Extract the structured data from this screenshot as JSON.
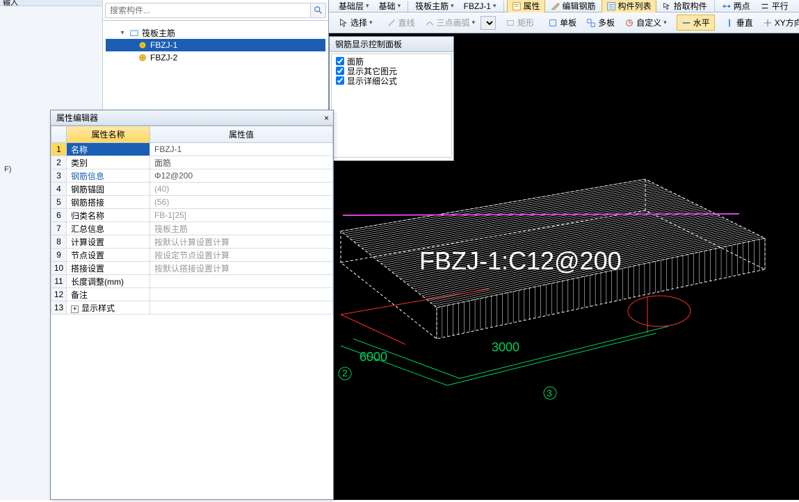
{
  "left": {
    "header": "输入",
    "mark": "F)"
  },
  "search": {
    "placeholder": "搜索构件..."
  },
  "tree": {
    "root": "筏板主筋",
    "items": [
      "FBZJ-1",
      "FBZJ-2"
    ],
    "selected": 0
  },
  "toolbar1": {
    "items": [
      "基础层",
      "基础",
      "筏板主筋",
      "FBZJ-1"
    ],
    "buttons": {
      "attr": "属性",
      "edit": "编辑钢筋",
      "list": "构件列表",
      "pick": "拾取构件",
      "twopt": "两点",
      "parallel": "平行"
    }
  },
  "toolbar2": {
    "select": "选择",
    "line": "直线",
    "arc": "三点画弧",
    "rect": "矩形",
    "single": "单板",
    "multi": "多板",
    "custom": "自定义",
    "horiz": "水平",
    "vert": "垂直",
    "xy": "XY方向"
  },
  "prop": {
    "title": "属性编辑器",
    "headers": {
      "name": "属性名称",
      "value": "属性值"
    },
    "rows": [
      {
        "n": "1",
        "name": "名称",
        "val": "FBZJ-1",
        "sel": true
      },
      {
        "n": "2",
        "name": "类别",
        "val": "面筋"
      },
      {
        "n": "3",
        "name": "钢筋信息",
        "val": "Φ12@200",
        "link": true
      },
      {
        "n": "4",
        "name": "钢筋锚固",
        "val": "(40)",
        "gray": true
      },
      {
        "n": "5",
        "name": "钢筋搭接",
        "val": "(56)",
        "gray": true
      },
      {
        "n": "6",
        "name": "归类名称",
        "val": "FB-1[25]",
        "gray": true
      },
      {
        "n": "7",
        "name": "汇总信息",
        "val": "筏板主筋",
        "gray": true
      },
      {
        "n": "8",
        "name": "计算设置",
        "val": "按默认计算设置计算",
        "gray": true
      },
      {
        "n": "9",
        "name": "节点设置",
        "val": "按设定节点设置计算",
        "gray": true
      },
      {
        "n": "10",
        "name": "搭接设置",
        "val": "按默认搭接设置计算",
        "gray": true
      },
      {
        "n": "11",
        "name": "长度调整(mm)",
        "val": ""
      },
      {
        "n": "12",
        "name": "备注",
        "val": ""
      },
      {
        "n": "13",
        "name": "显示样式",
        "val": "",
        "expand": true
      }
    ]
  },
  "panel": {
    "title": "钢筋显示控制面板",
    "opts": [
      "面筋",
      "显示其它图元",
      "显示详细公式"
    ]
  },
  "view": {
    "label": "FBZJ-1:C12@200",
    "dims": {
      "d1": "6000",
      "d2": "3000"
    },
    "grid": {
      "g2": "2",
      "g3": "3"
    },
    "colors": {
      "bg": "#000000",
      "wire": "#ffffff",
      "magenta": "#e040e0",
      "red": "#ff3030",
      "green": "#00d060"
    }
  }
}
